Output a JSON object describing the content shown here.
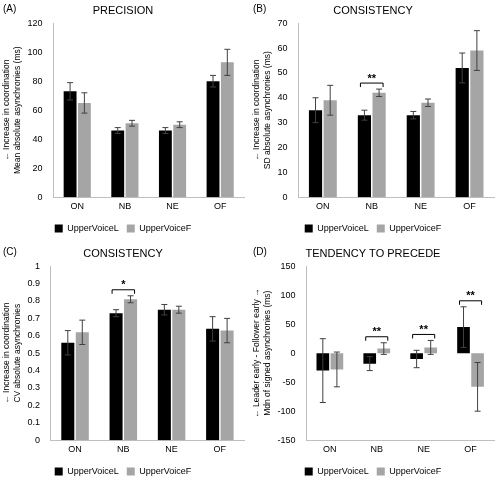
{
  "chart_data": [
    {
      "type": "bar",
      "panel": "(A)",
      "title": "PRECISION",
      "y_label": [
        "← Increase in coordination",
        "Mean absolute asynchronies (ms)"
      ],
      "categories": [
        "ON",
        "NB",
        "NE",
        "OF"
      ],
      "series": [
        {
          "name": "UpperVoiceL",
          "color": "#000000",
          "values": [
            73,
            46,
            46,
            80
          ],
          "errors": [
            6,
            2,
            2,
            4
          ]
        },
        {
          "name": "UpperVoiceF",
          "color": "#a5a5a5",
          "values": [
            65,
            51,
            50,
            93
          ],
          "errors": [
            7,
            2,
            2,
            9
          ]
        }
      ],
      "ylim": [
        0,
        120
      ],
      "yticks": [
        0,
        20,
        40,
        60,
        80,
        100,
        120
      ],
      "grid": false,
      "legend": "bottom",
      "annotations": []
    },
    {
      "type": "bar",
      "panel": "(B)",
      "title": "CONSISTENCY",
      "y_label": [
        "← Increase in coordination",
        "SD absolute asynchronies (ms)"
      ],
      "categories": [
        "ON",
        "NB",
        "NE",
        "OF"
      ],
      "series": [
        {
          "name": "UpperVoiceL",
          "color": "#000000",
          "values": [
            35,
            33,
            33,
            52
          ],
          "errors": [
            5,
            2,
            1.5,
            6
          ]
        },
        {
          "name": "UpperVoiceF",
          "color": "#a5a5a5",
          "values": [
            39,
            42,
            38,
            59
          ],
          "errors": [
            6,
            1.5,
            1.5,
            8
          ]
        }
      ],
      "ylim": [
        0,
        70
      ],
      "yticks": [
        0,
        10,
        20,
        30,
        40,
        50,
        60,
        70
      ],
      "grid": false,
      "legend": "bottom",
      "annotations": [
        {
          "category": "NB",
          "text": "**"
        }
      ]
    },
    {
      "type": "bar",
      "panel": "(C)",
      "title": "CONSISTENCY",
      "y_label": [
        "← Increase in coordination",
        "CV absolute asynchronies"
      ],
      "categories": [
        "ON",
        "NB",
        "NE",
        "OF"
      ],
      "series": [
        {
          "name": "UpperVoiceL",
          "color": "#000000",
          "values": [
            0.56,
            0.73,
            0.75,
            0.64
          ],
          "errors": [
            0.07,
            0.02,
            0.03,
            0.07
          ]
        },
        {
          "name": "UpperVoiceF",
          "color": "#a5a5a5",
          "values": [
            0.62,
            0.81,
            0.75,
            0.63
          ],
          "errors": [
            0.07,
            0.02,
            0.02,
            0.07
          ]
        }
      ],
      "ylim": [
        0,
        1
      ],
      "yticks": [
        0,
        0.1,
        0.2,
        0.3,
        0.4,
        0.5,
        0.6,
        0.7,
        0.8,
        0.9,
        1
      ],
      "grid": false,
      "legend": "bottom",
      "annotations": [
        {
          "category": "NB",
          "text": "*"
        }
      ]
    },
    {
      "type": "bar",
      "panel": "(D)",
      "title": "TENDENCY TO PRECEDE",
      "y_label": [
        "← Leader early - Follower early →",
        "Mdn of signed asynchronies (ms)"
      ],
      "categories": [
        "ON",
        "NB",
        "NE",
        "OF"
      ],
      "series": [
        {
          "name": "UpperVoiceL",
          "color": "#000000",
          "values": [
            -30,
            -18,
            -10,
            45
          ],
          "errors": [
            55,
            12,
            15,
            35
          ]
        },
        {
          "name": "UpperVoiceF",
          "color": "#a5a5a5",
          "values": [
            -28,
            8,
            10,
            -58
          ],
          "errors": [
            30,
            10,
            12,
            42
          ]
        }
      ],
      "ylim": [
        -150,
        150
      ],
      "yticks": [
        -150,
        -100,
        -50,
        0,
        50,
        100,
        150
      ],
      "grid": false,
      "legend": "bottom",
      "annotations": [
        {
          "category": "NB",
          "text": "**"
        },
        {
          "category": "NE",
          "text": "**"
        },
        {
          "category": "OF",
          "text": "**"
        }
      ]
    }
  ]
}
